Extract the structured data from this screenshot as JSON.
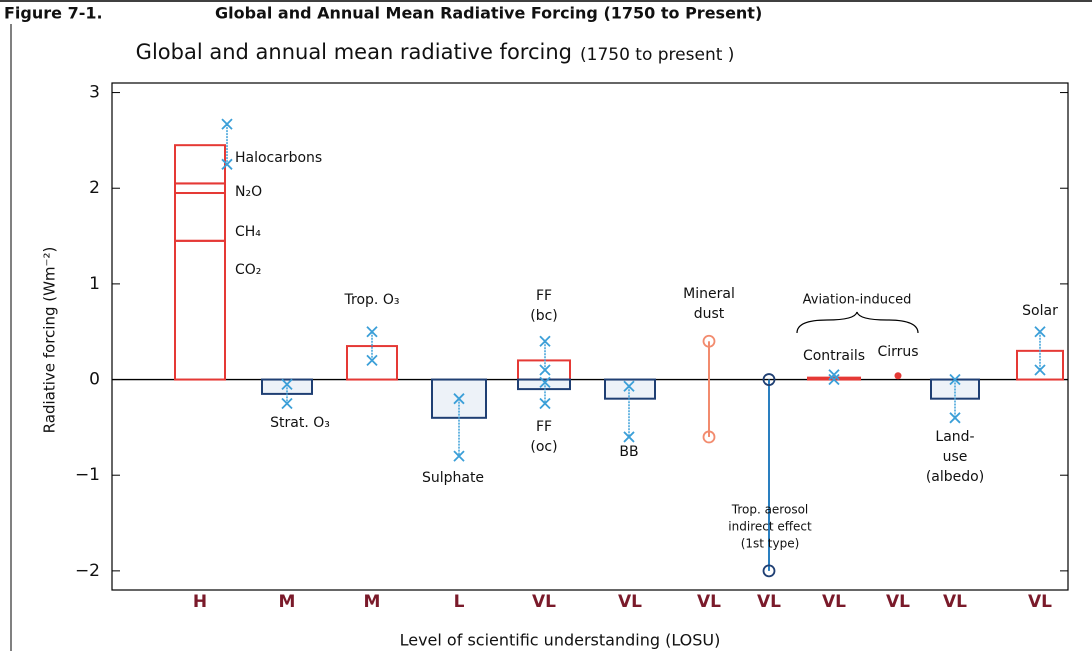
{
  "header": {
    "figure": "Figure 7-1.",
    "title": "Global and Annual Mean Radiative Forcing (1750 to Present)"
  },
  "chart_data": {
    "type": "forcing",
    "title": "Global and annual mean radiative forcing",
    "subtitle": "(1750 to present )",
    "y_label": "Radiative forcing (Wm⁻²)",
    "x_label": "Level  of scientific understanding (LOSU)",
    "ylim": [
      -2.2,
      3.1
    ],
    "yticks": [
      {
        "value": -2,
        "label": "−2"
      },
      {
        "value": -1,
        "label": "−1"
      },
      0,
      1,
      2,
      3
    ],
    "colors": {
      "positive": "#e53935",
      "negative": "#1f3f73",
      "range": "#3b9fd8"
    },
    "annotations": [
      {
        "text": "Aviation-induced"
      }
    ],
    "columns": [
      {
        "losu": "H",
        "items": [
          {
            "segments": [
              {
                "name": "CO₂",
                "value": 1.45
              },
              {
                "name": "CH₄",
                "value": 0.5
              },
              {
                "name": "N₂O",
                "value": 0.1
              },
              {
                "name": "Halocarbons",
                "value": 0.4
              }
            ],
            "range": [
              2.67,
              2.25
            ]
          }
        ]
      },
      {
        "losu": "M",
        "items": [
          {
            "label": [
              "Strat. O₃"
            ],
            "value": -0.15,
            "range": [
              -0.05,
              -0.25
            ]
          }
        ]
      },
      {
        "losu": "M",
        "items": [
          {
            "label": [
              "Trop. O₃"
            ],
            "value": 0.35,
            "range": [
              0.5,
              0.2
            ]
          }
        ]
      },
      {
        "losu": "L",
        "items": [
          {
            "label": [
              "Sulphate"
            ],
            "value": -0.4,
            "range": [
              -0.2,
              -0.8
            ]
          }
        ]
      },
      {
        "losu": "VL",
        "items": [
          {
            "label": [
              "FF",
              "(bc)"
            ],
            "value": 0.2,
            "range": [
              0.4,
              0.1
            ]
          },
          {
            "label": [
              "FF",
              "(oc)"
            ],
            "value": -0.1,
            "range": [
              -0.03,
              -0.25
            ]
          }
        ]
      },
      {
        "losu": "VL",
        "items": [
          {
            "label": [
              "BB"
            ],
            "value": -0.2,
            "range": [
              -0.07,
              -0.6
            ]
          }
        ]
      },
      {
        "losu": "VL",
        "items": [
          {
            "label": [
              "Mineral",
              "dust"
            ],
            "range": [
              0.4,
              -0.6
            ],
            "color": "#f28b6e"
          }
        ]
      },
      {
        "losu": "VL",
        "items": [
          {
            "label": [
              "Trop. aerosol",
              "indirect effect",
              "(1st type)"
            ],
            "range": [
              0,
              -2
            ],
            "color": "#2a7fc0"
          }
        ]
      },
      {
        "losu": "VL",
        "items": [
          {
            "label": [
              "Contrails"
            ],
            "value": 0.02,
            "range": [
              0.05,
              0
            ]
          }
        ]
      },
      {
        "losu": "VL",
        "items": [
          {
            "label": [
              "Cirrus"
            ],
            "value": 0.04,
            "marker": "dot"
          }
        ]
      },
      {
        "losu": "VL",
        "items": [
          {
            "label": [
              "Land-",
              "use",
              "(albedo)"
            ],
            "value": -0.2,
            "range": [
              0,
              -0.4
            ]
          }
        ]
      },
      {
        "losu": "VL",
        "items": [
          {
            "label": [
              "Solar"
            ],
            "value": 0.3,
            "range": [
              0.5,
              0.1
            ]
          }
        ]
      }
    ]
  }
}
